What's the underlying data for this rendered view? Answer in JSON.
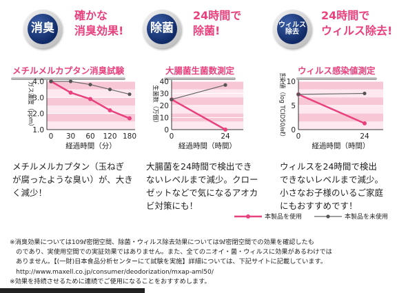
{
  "headers": [
    {
      "badge": "消臭",
      "badge_lines": [
        "消臭"
      ],
      "line1": "確かな",
      "line2": "消臭効果!"
    },
    {
      "badge": "除菌",
      "badge_lines": [
        "除菌"
      ],
      "line1": "24時間で",
      "line2": "除菌!"
    },
    {
      "badge": "ウィルス除去",
      "badge_lines": [
        "ウィルス",
        "除去"
      ],
      "line1": "24時間で",
      "line2": "ウィルス除去!"
    }
  ],
  "descriptions": [
    [
      "メチルメルカプタン（玉ねぎ",
      "が腐ったような臭い）が、大き",
      "く減少！"
    ],
    [
      "大腸菌を24時間で検出でき",
      "ないレベルまで減少。クロー",
      "ゼットなどで気になるアオカ",
      "ビ対策にも！"
    ],
    [
      "ウィルスを24時間で検出",
      "できないレベルまで減少。",
      "小さなお子様のいるご家庭",
      "にもおすすめです！"
    ]
  ],
  "legend": {
    "product": "本製品を使用",
    "none": "本製品を未使用"
  },
  "notes": [
    "※消臭効果については109ℓ密閉空間、除菌・ウィルス除去効果については9ℓ密閉空間での効果を確認したも",
    "　のであり、実使用空間での実証効果ではありません。また、全てのニオイ・菌・ウィルスに効果があるわけでは",
    "　ありません。【(一財)日本食品分析センターにて試験を実施】詳細については、下記サイトに記載しています。",
    "　http://www.maxell.co.jp/consumer/deodorization/mxap-aml50/",
    "※効果を持続させるために連続でご使用になることをおすすめします。"
  ],
  "colors": {
    "pink": "#e8417e",
    "band": "#f8c7d6",
    "gray": "#666666",
    "navy": "#1a3a7a"
  },
  "chart_data": [
    {
      "type": "line",
      "title": "メチルメルカプタン消臭試験",
      "xlabel": "経過時間（分）",
      "ylabel": "ガス濃度（ppm）",
      "x": [
        0,
        30,
        60,
        120,
        180
      ],
      "x_ticks": [
        "0",
        "30",
        "60",
        "120",
        "180"
      ],
      "ylim": [
        1.0,
        4.0
      ],
      "y_ticks": [
        "1.0",
        "2.0",
        "3.0",
        "4.0"
      ],
      "series": [
        {
          "name": "本製品を使用",
          "values": [
            4.0,
            3.3,
            2.9,
            2.2,
            1.7
          ]
        },
        {
          "name": "本製品を未使用",
          "values": [
            4.0,
            4.0,
            3.8,
            3.5,
            3.2
          ]
        }
      ]
    },
    {
      "type": "line",
      "title": "大腸菌生菌数測定",
      "xlabel": "経過時間（時間）",
      "ylabel": "生菌数（万個）",
      "x": [
        0,
        24
      ],
      "x_ticks": [
        "0",
        "24"
      ],
      "ylim": [
        0,
        40
      ],
      "y_ticks": [
        "0",
        "10",
        "20",
        "30",
        "40"
      ],
      "series": [
        {
          "name": "本製品を使用",
          "values": [
            25,
            0
          ]
        },
        {
          "name": "本製品を未使用",
          "values": [
            25,
            37
          ]
        }
      ]
    },
    {
      "type": "line",
      "title": "ウィルス感染値測定",
      "xlabel": "経過時間（時間）",
      "ylabel": "感染値（log TCID50/㎖）",
      "x": [
        0,
        24
      ],
      "x_ticks": [
        "0",
        "24"
      ],
      "ylim": [
        0,
        10
      ],
      "y_ticks": [
        "0",
        "5",
        "10"
      ],
      "series": [
        {
          "name": "本製品を使用",
          "values": [
            7.3,
            1.3
          ]
        },
        {
          "name": "本製品を未使用",
          "values": [
            7.3,
            7.5
          ]
        }
      ]
    }
  ]
}
